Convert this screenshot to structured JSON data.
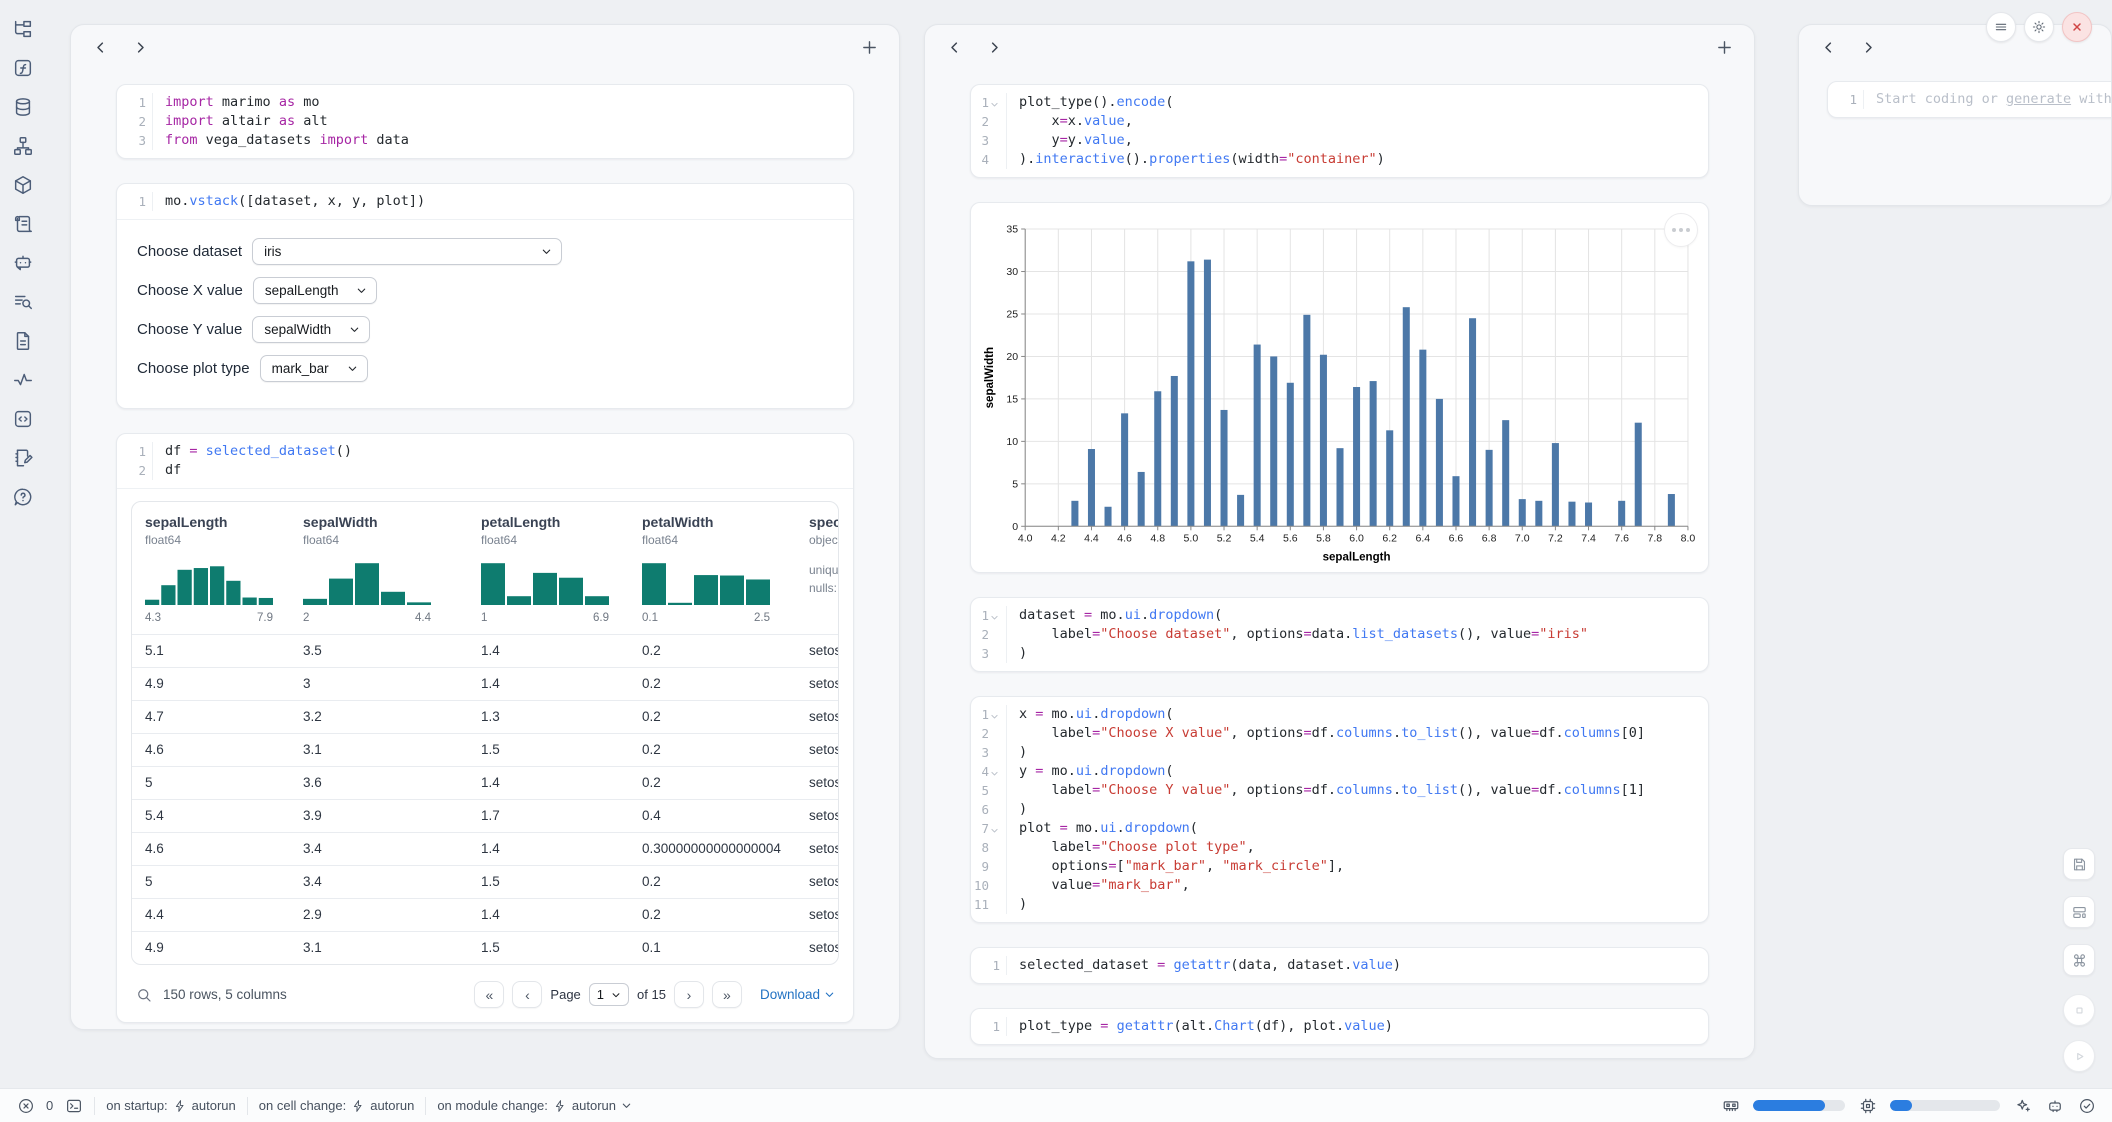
{
  "sidebar": {
    "icons": [
      {
        "name": "file-tree-icon"
      },
      {
        "name": "function-icon"
      },
      {
        "name": "database-icon"
      },
      {
        "name": "dependency-graph-icon"
      },
      {
        "name": "packages-icon"
      },
      {
        "name": "logs-icon"
      },
      {
        "name": "chatbot-icon"
      },
      {
        "name": "search-list-icon"
      },
      {
        "name": "documentation-icon"
      },
      {
        "name": "tracing-icon"
      },
      {
        "name": "snippets-icon"
      },
      {
        "name": "scratchpad-icon"
      },
      {
        "name": "help-icon"
      }
    ]
  },
  "left_panel": {
    "cells": {
      "imports": {
        "folds": [],
        "lines": [
          [
            [
              "k",
              "import"
            ],
            [
              "p",
              " marimo "
            ],
            [
              "k",
              "as"
            ],
            [
              "p",
              " mo"
            ]
          ],
          [
            [
              "k",
              "import"
            ],
            [
              "p",
              " altair "
            ],
            [
              "k",
              "as"
            ],
            [
              "p",
              " alt"
            ]
          ],
          [
            [
              "k",
              "from"
            ],
            [
              "p",
              " vega_datasets "
            ],
            [
              "k",
              "import"
            ],
            [
              "p",
              " data"
            ]
          ]
        ]
      },
      "vstack": {
        "folds": [],
        "lines": [
          [
            [
              "p",
              "mo."
            ],
            [
              "f",
              "vstack"
            ],
            [
              "p",
              "([dataset, x, y, plot])"
            ]
          ]
        ]
      },
      "df": {
        "folds": [],
        "lines": [
          [
            [
              "p",
              "df "
            ],
            [
              "k",
              "="
            ],
            [
              "p",
              " "
            ],
            [
              "f",
              "selected_dataset"
            ],
            [
              "p",
              "()"
            ]
          ],
          [
            [
              "p",
              "df"
            ]
          ]
        ]
      }
    },
    "controls": [
      {
        "name": "dataset-select",
        "label": "Choose dataset",
        "value": "iris",
        "wide": true
      },
      {
        "name": "x-value-select",
        "label": "Choose X value",
        "value": "sepalLength",
        "wide": false
      },
      {
        "name": "y-value-select",
        "label": "Choose Y value",
        "value": "sepalWidth",
        "wide": false
      },
      {
        "name": "plot-type-select",
        "label": "Choose plot type",
        "value": "mark_bar",
        "wide": false
      }
    ],
    "table": {
      "columns": [
        {
          "name": "sepalLength",
          "dtype": "float64",
          "min": "4.3",
          "max": "7.9",
          "hist": [
            0.12,
            0.45,
            0.8,
            0.84,
            0.88,
            0.55,
            0.17,
            0.16
          ]
        },
        {
          "name": "sepalWidth",
          "dtype": "float64",
          "min": "2",
          "max": "4.4",
          "hist": [
            0.14,
            0.6,
            0.95,
            0.3,
            0.06
          ]
        },
        {
          "name": "petalLength",
          "dtype": "float64",
          "min": "1",
          "max": "6.9",
          "hist": [
            0.95,
            0.2,
            0.73,
            0.62,
            0.2
          ]
        },
        {
          "name": "petalWidth",
          "dtype": "float64",
          "min": "0.1",
          "max": "2.5",
          "hist": [
            0.95,
            0.05,
            0.68,
            0.67,
            0.58
          ]
        },
        {
          "name": "species",
          "dtype": "object",
          "meta_lines": [
            "unique",
            "nulls:"
          ]
        }
      ],
      "rows": [
        [
          "5.1",
          "3.5",
          "1.4",
          "0.2",
          "setosa"
        ],
        [
          "4.9",
          "3",
          "1.4",
          "0.2",
          "setosa"
        ],
        [
          "4.7",
          "3.2",
          "1.3",
          "0.2",
          "setosa"
        ],
        [
          "4.6",
          "3.1",
          "1.5",
          "0.2",
          "setosa"
        ],
        [
          "5",
          "3.6",
          "1.4",
          "0.2",
          "setosa"
        ],
        [
          "5.4",
          "3.9",
          "1.7",
          "0.4",
          "setosa"
        ],
        [
          "4.6",
          "3.4",
          "1.4",
          "0.30000000000000004",
          "setosa"
        ],
        [
          "5",
          "3.4",
          "1.5",
          "0.2",
          "setosa"
        ],
        [
          "4.4",
          "2.9",
          "1.4",
          "0.2",
          "setosa"
        ],
        [
          "4.9",
          "3.1",
          "1.5",
          "0.1",
          "setosa"
        ]
      ],
      "footer": {
        "summary": "150 rows, 5 columns",
        "first_label": "«",
        "prev_label": "‹",
        "next_label": "›",
        "last_label": "»",
        "page_label": "Page",
        "page_value": "1",
        "of_label": "of 15",
        "download_label": "Download"
      },
      "hist_color": "#0e7c6f"
    }
  },
  "middle_panel": {
    "cells": {
      "plot": {
        "folds": [
          1
        ],
        "lines": [
          [
            [
              "p",
              "plot_type()."
            ],
            [
              "f",
              "encode"
            ],
            [
              "p",
              "("
            ]
          ],
          [
            [
              "p",
              "    x"
            ],
            [
              "k",
              "="
            ],
            [
              "p",
              "x."
            ],
            [
              "f",
              "value"
            ],
            [
              "p",
              ","
            ]
          ],
          [
            [
              "p",
              "    y"
            ],
            [
              "k",
              "="
            ],
            [
              "p",
              "y."
            ],
            [
              "f",
              "value"
            ],
            [
              "p",
              ","
            ]
          ],
          [
            [
              "p",
              ")."
            ],
            [
              "f",
              "interactive"
            ],
            [
              "p",
              "()."
            ],
            [
              "f",
              "properties"
            ],
            [
              "p",
              "(width"
            ],
            [
              "k",
              "="
            ],
            [
              "s",
              "\"container\""
            ],
            [
              "p",
              ")"
            ]
          ]
        ]
      },
      "dataset": {
        "folds": [
          1
        ],
        "lines": [
          [
            [
              "p",
              "dataset "
            ],
            [
              "k",
              "="
            ],
            [
              "p",
              " mo."
            ],
            [
              "f",
              "ui"
            ],
            [
              "p",
              "."
            ],
            [
              "f",
              "dropdown"
            ],
            [
              "p",
              "("
            ]
          ],
          [
            [
              "p",
              "    label"
            ],
            [
              "k",
              "="
            ],
            [
              "s",
              "\"Choose dataset\""
            ],
            [
              "p",
              ", options"
            ],
            [
              "k",
              "="
            ],
            [
              "p",
              "data."
            ],
            [
              "f",
              "list_datasets"
            ],
            [
              "p",
              "(), value"
            ],
            [
              "k",
              "="
            ],
            [
              "s",
              "\"iris\""
            ]
          ],
          [
            [
              "p",
              ")"
            ]
          ]
        ]
      },
      "xyplot": {
        "folds": [
          1,
          4,
          7
        ],
        "lines": [
          [
            [
              "p",
              "x "
            ],
            [
              "k",
              "="
            ],
            [
              "p",
              " mo."
            ],
            [
              "f",
              "ui"
            ],
            [
              "p",
              "."
            ],
            [
              "f",
              "dropdown"
            ],
            [
              "p",
              "("
            ]
          ],
          [
            [
              "p",
              "    label"
            ],
            [
              "k",
              "="
            ],
            [
              "s",
              "\"Choose X value\""
            ],
            [
              "p",
              ", options"
            ],
            [
              "k",
              "="
            ],
            [
              "p",
              "df."
            ],
            [
              "f",
              "columns"
            ],
            [
              "p",
              "."
            ],
            [
              "f",
              "to_list"
            ],
            [
              "p",
              "(), value"
            ],
            [
              "k",
              "="
            ],
            [
              "p",
              "df."
            ],
            [
              "f",
              "columns"
            ],
            [
              "p",
              "[0]"
            ]
          ],
          [
            [
              "p",
              ")"
            ]
          ],
          [
            [
              "p",
              "y "
            ],
            [
              "k",
              "="
            ],
            [
              "p",
              " mo."
            ],
            [
              "f",
              "ui"
            ],
            [
              "p",
              "."
            ],
            [
              "f",
              "dropdown"
            ],
            [
              "p",
              "("
            ]
          ],
          [
            [
              "p",
              "    label"
            ],
            [
              "k",
              "="
            ],
            [
              "s",
              "\"Choose Y value\""
            ],
            [
              "p",
              ", options"
            ],
            [
              "k",
              "="
            ],
            [
              "p",
              "df."
            ],
            [
              "f",
              "columns"
            ],
            [
              "p",
              "."
            ],
            [
              "f",
              "to_list"
            ],
            [
              "p",
              "(), value"
            ],
            [
              "k",
              "="
            ],
            [
              "p",
              "df."
            ],
            [
              "f",
              "columns"
            ],
            [
              "p",
              "[1]"
            ]
          ],
          [
            [
              "p",
              ")"
            ]
          ],
          [
            [
              "p",
              "plot "
            ],
            [
              "k",
              "="
            ],
            [
              "p",
              " mo."
            ],
            [
              "f",
              "ui"
            ],
            [
              "p",
              "."
            ],
            [
              "f",
              "dropdown"
            ],
            [
              "p",
              "("
            ]
          ],
          [
            [
              "p",
              "    label"
            ],
            [
              "k",
              "="
            ],
            [
              "s",
              "\"Choose plot type\""
            ],
            [
              "p",
              ","
            ]
          ],
          [
            [
              "p",
              "    options"
            ],
            [
              "k",
              "="
            ],
            [
              "p",
              "["
            ],
            [
              "s",
              "\"mark_bar\""
            ],
            [
              "p",
              ", "
            ],
            [
              "s",
              "\"mark_circle\""
            ],
            [
              "p",
              "],"
            ]
          ],
          [
            [
              "p",
              "    value"
            ],
            [
              "k",
              "="
            ],
            [
              "s",
              "\"mark_bar\""
            ],
            [
              "p",
              ","
            ]
          ],
          [
            [
              "p",
              ")"
            ]
          ]
        ]
      },
      "selected": {
        "folds": [],
        "lines": [
          [
            [
              "p",
              "selected_dataset "
            ],
            [
              "k",
              "="
            ],
            [
              "p",
              " "
            ],
            [
              "f",
              "getattr"
            ],
            [
              "p",
              "(data, dataset."
            ],
            [
              "f",
              "value"
            ],
            [
              "p",
              ")"
            ]
          ]
        ]
      },
      "plottype": {
        "folds": [],
        "lines": [
          [
            [
              "p",
              "plot_type "
            ],
            [
              "k",
              "="
            ],
            [
              "p",
              " "
            ],
            [
              "f",
              "getattr"
            ],
            [
              "p",
              "(alt."
            ],
            [
              "f",
              "Chart"
            ],
            [
              "p",
              "(df), plot."
            ],
            [
              "f",
              "value"
            ],
            [
              "p",
              ")"
            ]
          ]
        ]
      }
    }
  },
  "right_panel": {
    "editor": {
      "folds": [],
      "lines": [
        [
          [
            "ph",
            "Start coding or "
          ],
          [
            "phu",
            "generate"
          ],
          [
            "ph",
            " with"
          ]
        ]
      ]
    }
  },
  "chart_data": {
    "type": "bar",
    "title": "",
    "xlabel": "sepalLength",
    "ylabel": "sepalWidth",
    "xlim": [
      4.0,
      8.0
    ],
    "ylim": [
      0,
      35
    ],
    "grid": true,
    "legend": "none",
    "bar_color": "#4c78a8",
    "x_ticks": [
      "4.0",
      "4.2",
      "4.4",
      "4.6",
      "4.8",
      "5.0",
      "5.2",
      "5.4",
      "5.6",
      "5.8",
      "6.0",
      "6.2",
      "6.4",
      "6.6",
      "6.8",
      "7.0",
      "7.2",
      "7.4",
      "7.6",
      "7.8",
      "8.0"
    ],
    "y_ticks": [
      0,
      5,
      10,
      15,
      20,
      25,
      30,
      35
    ],
    "x": [
      4.3,
      4.4,
      4.5,
      4.6,
      4.7,
      4.8,
      4.9,
      5.0,
      5.1,
      5.2,
      5.3,
      5.4,
      5.5,
      5.6,
      5.7,
      5.8,
      5.9,
      6.0,
      6.1,
      6.2,
      6.3,
      6.4,
      6.5,
      6.6,
      6.7,
      6.8,
      6.9,
      7.0,
      7.1,
      7.2,
      7.3,
      7.4,
      7.6,
      7.7,
      7.9
    ],
    "values": [
      3.0,
      9.1,
      2.3,
      13.3,
      6.4,
      15.9,
      17.7,
      31.2,
      31.4,
      13.7,
      3.7,
      21.4,
      20.0,
      16.9,
      24.9,
      20.2,
      9.2,
      16.4,
      17.1,
      11.3,
      25.8,
      20.8,
      15.0,
      5.9,
      24.5,
      9.0,
      12.5,
      3.2,
      3.0,
      9.8,
      2.9,
      2.8,
      3.0,
      12.2,
      3.8
    ]
  },
  "top_right_buttons": [
    {
      "name": "menu-button",
      "icon": "menu-icon",
      "variant": ""
    },
    {
      "name": "settings-button",
      "icon": "gear-icon",
      "variant": ""
    },
    {
      "name": "close-button",
      "icon": "close-icon",
      "variant": "danger"
    }
  ],
  "side_buttons": [
    {
      "name": "save-button",
      "icon": "save-icon",
      "circle": false
    },
    {
      "name": "layout-button",
      "icon": "layout-icon",
      "circle": false
    },
    {
      "name": "shortcuts-button",
      "icon": "command-icon",
      "circle": false
    },
    {
      "name": "stop-button",
      "icon": "stop-icon",
      "circle": true
    },
    {
      "name": "run-button",
      "icon": "play-icon",
      "circle": true
    }
  ],
  "statusbar": {
    "error_count": "0",
    "segments": [
      {
        "label": "on startup:",
        "value": "autorun",
        "chevron": false
      },
      {
        "label": "on cell change:",
        "value": "autorun",
        "chevron": false
      },
      {
        "label": "on module change:",
        "value": "autorun",
        "chevron": true
      }
    ],
    "ram_fill": 0.78,
    "cpu_fill": 0.2
  }
}
